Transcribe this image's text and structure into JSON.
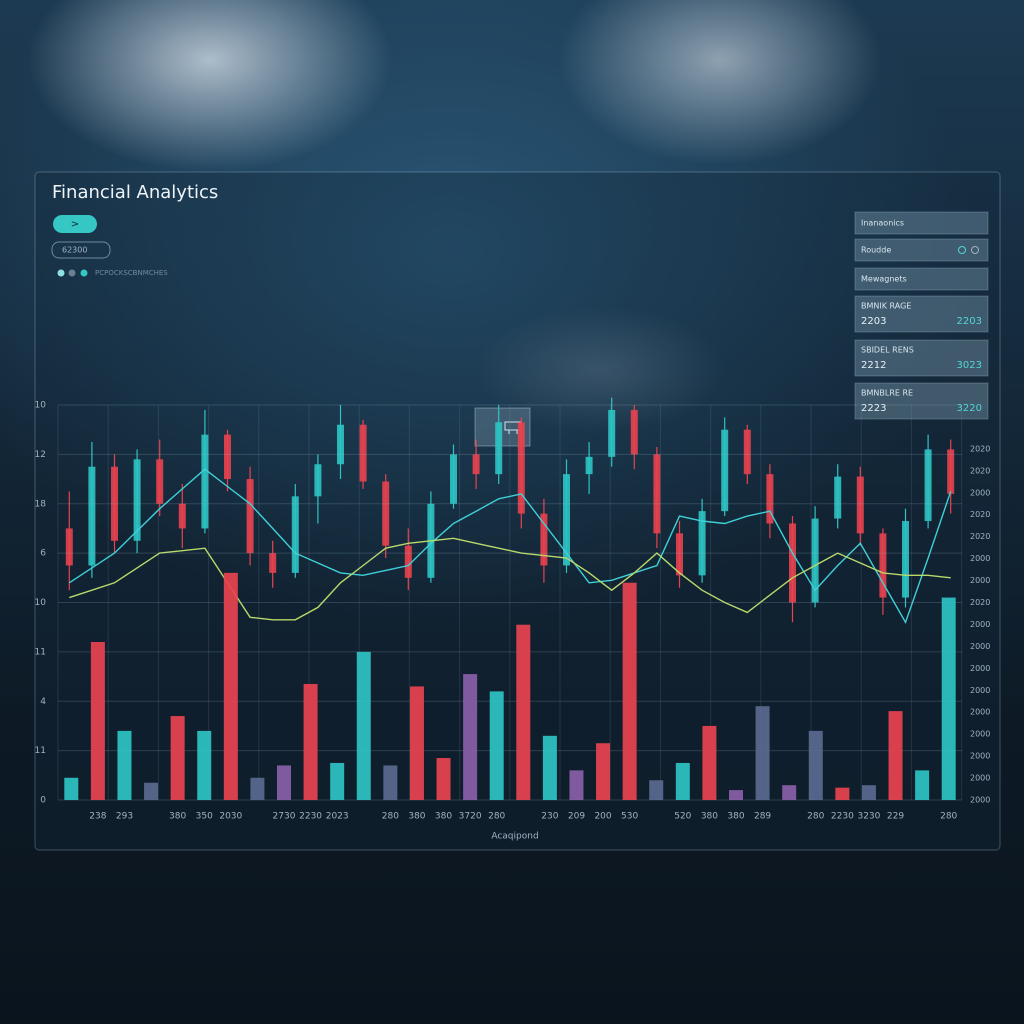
{
  "header": {
    "title": "Financial Analytics",
    "button": ">",
    "input": "62300",
    "legend_text": "PCPOCKSCBNMCHES"
  },
  "panels": [
    {
      "label": "Inanaonics"
    },
    {
      "label": "Roudde"
    },
    {
      "label": "Mewagnets"
    },
    {
      "label": "BMNIK RAGE",
      "left": "2203",
      "right": "2203"
    },
    {
      "label": "SBIDEL RENS",
      "left": "2212",
      "right": "3023"
    },
    {
      "label": "BMNBLRE RE",
      "left": "2223",
      "right": "3220"
    }
  ],
  "chart_data": [
    {
      "type": "candlestick",
      "categories": [
        null,
        null,
        null,
        null,
        null,
        null,
        null,
        null,
        null,
        null,
        null,
        null,
        null,
        null,
        null,
        null,
        null,
        null,
        null,
        null,
        null,
        null,
        null,
        null,
        null,
        null,
        null,
        null,
        null,
        null,
        null,
        null,
        null,
        null,
        null,
        null,
        null,
        null,
        null,
        null
      ],
      "open": [
        11,
        9.5,
        13.5,
        10.5,
        13.8,
        12,
        11,
        14.8,
        13,
        10,
        9.2,
        12.3,
        13.6,
        15.2,
        12.9,
        10.3,
        9,
        12,
        14,
        13.2,
        15.3,
        11.6,
        9.5,
        13.2,
        13.9,
        15.8,
        14,
        10.8,
        9.1,
        11.7,
        15,
        13.2,
        11.2,
        8,
        11.4,
        13.1,
        10.8,
        8.2,
        11.3,
        14.2
      ],
      "high": [
        12.5,
        14.5,
        14,
        14.2,
        14.6,
        12.8,
        15.8,
        15,
        13.5,
        10.5,
        12.8,
        14,
        16,
        15.4,
        13.2,
        11,
        12.5,
        14.4,
        14.6,
        16,
        15.5,
        12.2,
        13.8,
        14.5,
        16.3,
        16,
        14.3,
        11.3,
        12.2,
        15.5,
        15.2,
        13.6,
        11.5,
        11.9,
        13.6,
        13.5,
        11,
        11.8,
        14.8,
        14.6
      ],
      "low": [
        8.5,
        9,
        10,
        10,
        11.5,
        10.2,
        10.8,
        12.5,
        9.5,
        8.6,
        9,
        11.2,
        13,
        12.6,
        9.8,
        8.5,
        8.8,
        11.8,
        12.6,
        12.8,
        11,
        8.8,
        9.2,
        12.4,
        13.5,
        13.4,
        10.2,
        8.6,
        8.8,
        11.5,
        12.8,
        10.6,
        7.2,
        7.8,
        11,
        10.3,
        7.5,
        7.8,
        11,
        11.6
      ],
      "close": [
        9.5,
        13.5,
        10.5,
        13.8,
        12,
        11,
        14.8,
        13,
        10,
        9.2,
        12.3,
        13.6,
        15.2,
        12.9,
        10.3,
        9,
        12,
        14,
        13.2,
        15.3,
        11.6,
        9.5,
        13.2,
        13.9,
        15.8,
        14,
        10.8,
        9.1,
        11.7,
        15,
        13.2,
        11.2,
        8,
        11.4,
        13.1,
        10.8,
        8.2,
        11.3,
        14.2,
        12.4
      ],
      "up_color": "#2ec4c4",
      "down_color": "#e8434f",
      "series": [
        {
          "color": "#3fd0d8",
          "values": [
            8.8,
            9.4,
            10,
            10.9,
            11.8,
            12.6,
            13.4,
            12.7,
            12,
            11,
            10,
            9.6,
            9.2,
            9.1,
            9.3,
            9.5,
            10.4,
            11.2,
            11.7,
            12.2,
            12.4,
            11.2,
            10,
            8.8,
            8.9,
            9.2,
            9.5,
            11.5,
            11.3,
            11.2,
            11.5,
            11.7,
            10,
            8.5,
            9.5,
            10.4,
            8.8,
            7.2,
            9.8,
            12.5
          ]
        },
        {
          "color": "#b9d86a",
          "values": [
            8.2,
            8.5,
            8.8,
            9.4,
            10,
            10.1,
            10.2,
            8.8,
            7.4,
            7.3,
            7.3,
            7.8,
            8.8,
            9.5,
            10.2,
            10.4,
            10.5,
            10.6,
            10.4,
            10.2,
            10,
            9.9,
            9.8,
            9.2,
            8.5,
            9.2,
            10,
            9.2,
            8.5,
            8,
            7.6,
            8.3,
            9,
            9.5,
            10,
            9.6,
            9.2,
            9.1,
            9.1,
            9
          ]
        }
      ],
      "ylim": [
        0,
        16
      ]
    },
    {
      "type": "bar",
      "xlabel": "Acaqipond",
      "categories": [
        null,
        "238",
        "293",
        null,
        "380",
        "350",
        "2030",
        null,
        "2730",
        "2230",
        "2023",
        null,
        "280",
        "380",
        "380",
        "3720",
        "280",
        null,
        "230",
        "209",
        "200",
        "530",
        null,
        "520",
        "380",
        "380",
        "289",
        null,
        "280",
        "2230",
        "3230",
        "229",
        null,
        "280"
      ],
      "values": [
        0.9,
        6.4,
        2.8,
        0.7,
        3.4,
        2.8,
        9.2,
        0.9,
        1.4,
        4.7,
        1.5,
        6.0,
        1.4,
        4.6,
        1.7,
        5.1,
        4.4,
        7.1,
        2.6,
        1.2,
        2.3,
        8.8,
        0.8,
        1.5,
        3.0,
        0.4,
        3.8,
        0.6,
        2.8,
        0.5,
        0.6,
        3.6,
        1.2,
        8.2
      ],
      "colors": [
        "#2ec4c4",
        "#e8434f",
        "#2ec4c4",
        "#5a6a90",
        "#e8434f",
        "#2ec4c4",
        "#e8434f",
        "#5a6a90",
        "#8a5fa8",
        "#e8434f",
        "#2ec4c4",
        "#2ec4c4",
        "#5a6a90",
        "#e8434f",
        "#e8434f",
        "#8a5fa8",
        "#2ec4c4",
        "#e8434f",
        "#2ec4c4",
        "#8a5fa8",
        "#e8434f",
        "#e8434f",
        "#5a6a90",
        "#2ec4c4",
        "#e8434f",
        "#8a5fa8",
        "#5a6a90",
        "#8a5fa8",
        "#5a6a90",
        "#e8434f",
        "#5a6a90",
        "#e8434f",
        "#2ec4c4",
        "#2ec4c4"
      ],
      "ylim": [
        0,
        16
      ],
      "yticks": [
        0,
        {
          "value": 2,
          "label": "11"
        },
        {
          "value": 4,
          "label": "4"
        },
        {
          "value": 6,
          "label": "11"
        },
        {
          "value": 8,
          "label": "10"
        },
        {
          "value": 10,
          "label": "6"
        },
        {
          "value": 12,
          "label": "18"
        },
        {
          "value": 14,
          "label": "12"
        },
        {
          "value": 16,
          "label": "10"
        }
      ],
      "y2lim": [
        0,
        18
      ],
      "y2ticks": [
        {
          "value": 0,
          "label": "2000"
        },
        {
          "value": 1,
          "label": "2000"
        },
        {
          "value": 2,
          "label": "2000"
        },
        {
          "value": 3,
          "label": "2000"
        },
        {
          "value": 4,
          "label": "2000"
        },
        {
          "value": 5,
          "label": "2000"
        },
        {
          "value": 6,
          "label": "2000"
        },
        {
          "value": 7,
          "label": "2000"
        },
        {
          "value": 8,
          "label": "2000"
        },
        {
          "value": 9,
          "label": "2020"
        },
        {
          "value": 10,
          "label": "2000"
        },
        {
          "value": 11,
          "label": "2000"
        },
        {
          "value": 12,
          "label": "2020"
        },
        {
          "value": 13,
          "label": "2020"
        },
        {
          "value": 14,
          "label": "2000"
        },
        {
          "value": 15,
          "label": "2020"
        },
        {
          "value": 16,
          "label": "2020"
        }
      ],
      "grid": true
    }
  ]
}
